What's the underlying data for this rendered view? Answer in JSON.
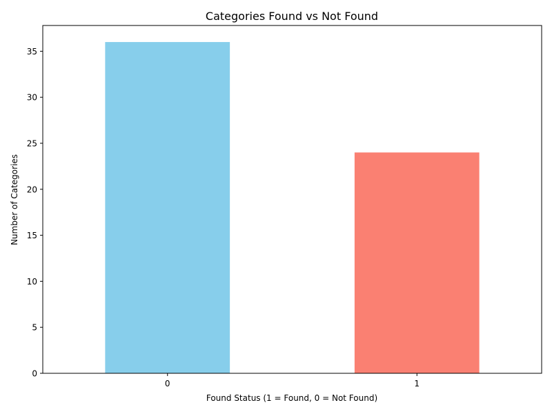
{
  "chart_data": {
    "type": "bar",
    "title": "Categories Found vs Not Found",
    "xlabel": "Found Status (1 = Found, 0 = Not Found)",
    "ylabel": "Number of Categories",
    "categories": [
      "0",
      "1"
    ],
    "values": [
      36,
      24
    ],
    "colors": [
      "#87CEEB",
      "#FA8072"
    ],
    "ylim": [
      0,
      37.8
    ],
    "yticks": [
      0,
      5,
      10,
      15,
      20,
      25,
      30,
      35
    ],
    "grid": false,
    "legend": "none"
  }
}
